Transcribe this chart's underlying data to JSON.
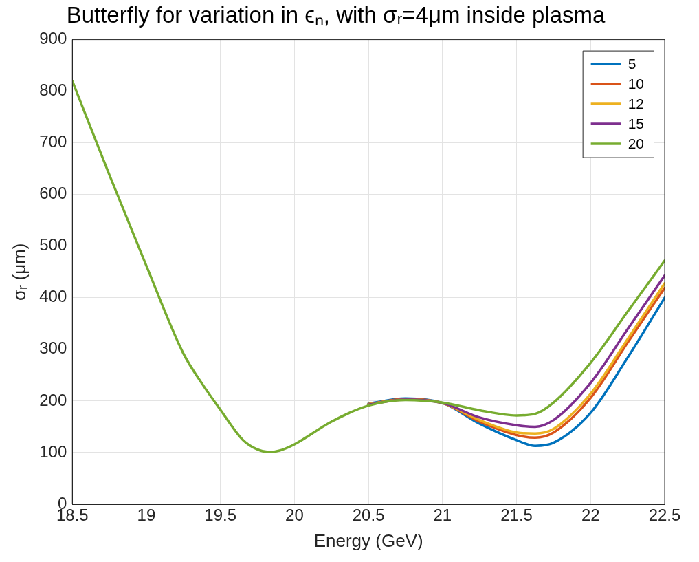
{
  "chart_data": {
    "type": "line",
    "title": "Butterfly for variation in ϵₙ, with σᵣ=4μm inside plasma",
    "xlabel": "Energy (GeV)",
    "ylabel": "σᵣ (μm)",
    "x": [
      18.5,
      18.75,
      19,
      19.25,
      19.375,
      19.5,
      19.65,
      19.75,
      19.83,
      19.9,
      20,
      20.25,
      20.5,
      20.75,
      21,
      21.25,
      21.5,
      21.625,
      21.75,
      22,
      22.25,
      22.5
    ],
    "series": [
      {
        "name": "5",
        "color": "#0072bd",
        "values": [
          null,
          null,
          null,
          null,
          null,
          null,
          null,
          null,
          null,
          null,
          null,
          null,
          195,
          205,
          196,
          156,
          124,
          113,
          119,
          177,
          284,
          400
        ]
      },
      {
        "name": "10",
        "color": "#d95319",
        "values": [
          null,
          null,
          null,
          null,
          null,
          null,
          null,
          null,
          null,
          null,
          null,
          null,
          194,
          204,
          196,
          160,
          134,
          129,
          139,
          206,
          313,
          419
        ]
      },
      {
        "name": "12",
        "color": "#edb120",
        "values": [
          null,
          null,
          null,
          null,
          null,
          null,
          null,
          null,
          null,
          null,
          null,
          null,
          194,
          203,
          196,
          163,
          139,
          137,
          146,
          214,
          320,
          428
        ]
      },
      {
        "name": "15",
        "color": "#7e2f8e",
        "values": [
          null,
          null,
          null,
          null,
          null,
          null,
          null,
          null,
          null,
          null,
          null,
          null,
          193,
          203,
          196,
          168,
          153,
          150,
          163,
          235,
          339,
          443
        ]
      },
      {
        "name": "20",
        "color": "#77ac30",
        "values": [
          820,
          638,
          462,
          292,
          234,
          183,
          125,
          106,
          101,
          104,
          116,
          160,
          191,
          202,
          197,
          182,
          172,
          175,
          197,
          274,
          373,
          472
        ]
      }
    ],
    "xlim": [
      18.5,
      22.5
    ],
    "xticks": [
      18.5,
      19,
      19.5,
      20,
      20.5,
      21,
      21.5,
      22,
      22.5
    ],
    "ylim": [
      0,
      900
    ],
    "yticks": [
      0,
      100,
      200,
      300,
      400,
      500,
      600,
      700,
      800,
      900
    ],
    "grid": true,
    "legend": "top right",
    "marker": "none",
    "line_style": "solid"
  }
}
